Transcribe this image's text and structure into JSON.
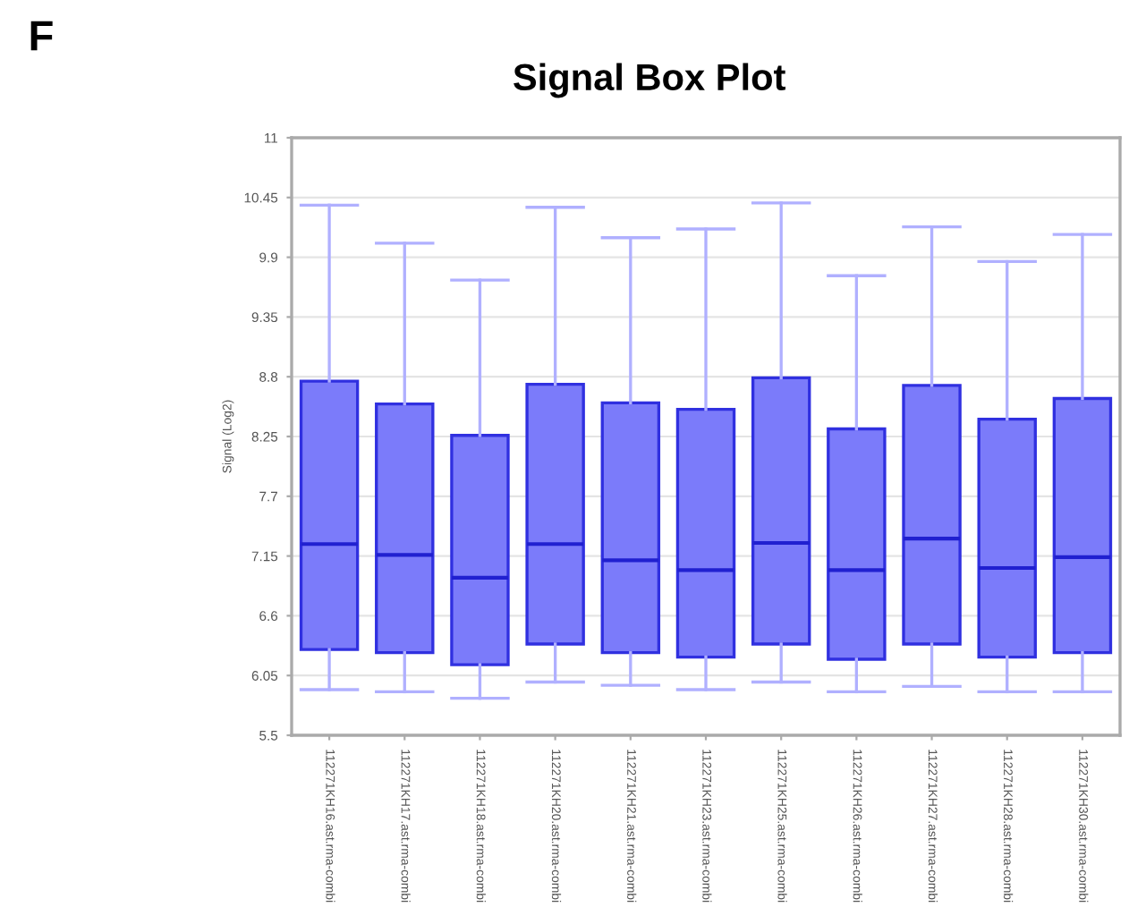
{
  "chart_data": {
    "type": "box",
    "title": "Signal Box Plot",
    "ylabel": "Signal (Log2)",
    "annotations": [
      "F"
    ],
    "categories": [
      "112271KH16.ast.rma-combi",
      "112271KH17.ast.rma-combi",
      "112271KH18.ast.rma-combi",
      "112271KH20.ast.rma-combi",
      "112271KH21.ast.rma-combi",
      "112271KH23.ast.rma-combi",
      "112271KH25.ast.rma-combi",
      "112271KH26.ast.rma-combi",
      "112271KH27.ast.rma-combi",
      "112271KH28.ast.rma-combi",
      "112271KH30.ast.rma-combi"
    ],
    "boxes": [
      {
        "low": 5.92,
        "q1": 6.29,
        "median": 7.26,
        "q3": 8.76,
        "high": 10.38
      },
      {
        "low": 5.9,
        "q1": 6.26,
        "median": 7.16,
        "q3": 8.55,
        "high": 10.03
      },
      {
        "low": 5.84,
        "q1": 6.15,
        "median": 6.95,
        "q3": 8.26,
        "high": 9.69
      },
      {
        "low": 5.99,
        "q1": 6.34,
        "median": 7.26,
        "q3": 8.73,
        "high": 10.36
      },
      {
        "low": 5.96,
        "q1": 6.26,
        "median": 7.11,
        "q3": 8.56,
        "high": 10.08
      },
      {
        "low": 5.92,
        "q1": 6.22,
        "median": 7.02,
        "q3": 8.5,
        "high": 10.16
      },
      {
        "low": 5.99,
        "q1": 6.34,
        "median": 7.27,
        "q3": 8.79,
        "high": 10.4
      },
      {
        "low": 5.9,
        "q1": 6.2,
        "median": 7.02,
        "q3": 8.32,
        "high": 9.73
      },
      {
        "low": 5.95,
        "q1": 6.34,
        "median": 7.31,
        "q3": 8.72,
        "high": 10.18
      },
      {
        "low": 5.9,
        "q1": 6.22,
        "median": 7.04,
        "q3": 8.41,
        "high": 9.86
      },
      {
        "low": 5.9,
        "q1": 6.26,
        "median": 7.14,
        "q3": 8.6,
        "high": 10.11
      }
    ],
    "color": "#7b7bfa",
    "ylim": [
      5.5,
      11
    ],
    "yticks": [
      5.5,
      6.05,
      6.6,
      7.15,
      7.7,
      8.25,
      8.8,
      9.35,
      9.9,
      10.45,
      11
    ],
    "grid": "y",
    "legend": false
  }
}
